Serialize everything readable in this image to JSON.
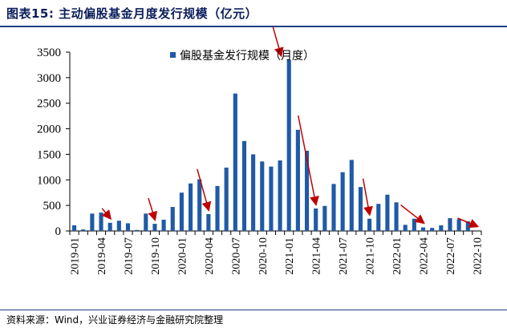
{
  "header": {
    "title": "图表15:  主动偏股基金月度发行规模（亿元）"
  },
  "footer": {
    "source": "资料来源：Wind，兴业证券经济与金融研究院整理"
  },
  "colors": {
    "bar": "#1f5aa6",
    "arrow": "#c00000",
    "rule": "#1f3f86"
  },
  "chart_data": {
    "type": "bar",
    "title": "",
    "xlabel": "",
    "ylabel": "",
    "ylim": [
      0,
      3500
    ],
    "yticks": [
      0,
      500,
      1000,
      1500,
      2000,
      2500,
      3000,
      3500
    ],
    "legend": {
      "label": "偏股基金发行规模（月度）",
      "position": "top-center"
    },
    "categories": [
      "2019-01",
      "2019-02",
      "2019-03",
      "2019-04",
      "2019-05",
      "2019-06",
      "2019-07",
      "2019-08",
      "2019-09",
      "2019-10",
      "2019-11",
      "2019-12",
      "2020-01",
      "2020-02",
      "2020-03",
      "2020-04",
      "2020-05",
      "2020-06",
      "2020-07",
      "2020-08",
      "2020-09",
      "2020-10",
      "2020-11",
      "2020-12",
      "2021-01",
      "2021-02",
      "2021-03",
      "2021-04",
      "2021-05",
      "2021-06",
      "2021-07",
      "2021-08",
      "2021-09",
      "2021-10",
      "2021-11",
      "2021-12",
      "2022-01",
      "2022-02",
      "2022-03",
      "2022-04",
      "2022-05",
      "2022-06",
      "2022-07",
      "2022-08",
      "2022-09",
      "2022-10"
    ],
    "xticklabels": [
      "2019-01",
      "2019-04",
      "2019-07",
      "2019-10",
      "2020-01",
      "2020-04",
      "2020-07",
      "2020-10",
      "2021-01",
      "2021-04",
      "2021-07",
      "2021-10",
      "2022-01",
      "2022-04",
      "2022-07",
      "2022-10"
    ],
    "series": [
      {
        "name": "偏股基金发行规模（月度）",
        "values": [
          110,
          30,
          340,
          360,
          160,
          200,
          150,
          20,
          340,
          140,
          220,
          470,
          750,
          930,
          1010,
          330,
          880,
          1240,
          2690,
          1760,
          1500,
          1360,
          1260,
          1380,
          3350,
          1980,
          1570,
          440,
          490,
          920,
          1150,
          1390,
          860,
          240,
          530,
          710,
          560,
          120,
          240,
          70,
          60,
          110,
          250,
          230,
          190,
          0
        ]
      }
    ],
    "annotations": [
      {
        "type": "arrow",
        "description": "red downward arrows marking issuance declines",
        "markers": [
          "2019-05",
          "2019-10",
          "2020-04",
          "2021-01",
          "2021-04",
          "2021-10",
          "2022-04",
          "2022-10"
        ]
      }
    ]
  }
}
